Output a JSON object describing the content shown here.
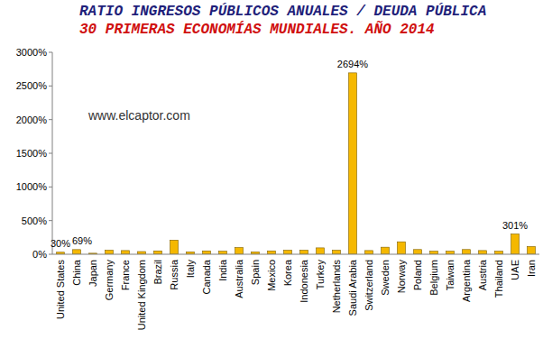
{
  "chart_data": {
    "type": "bar",
    "title": "RATIO INGRESOS PÚBLICOS ANUALES / DEUDA PÚBLICA",
    "subtitle": "30 PRIMERAS ECONOMÍAS MUNDIALES. AÑO 2014",
    "annotations": [
      "www.elcaptor.com"
    ],
    "categories": [
      "United States",
      "China",
      "Japan",
      "Germany",
      "France",
      "United Kingdom",
      "Brazil",
      "Russia",
      "Italy",
      "Canada",
      "India",
      "Australia",
      "Spain",
      "Mexico",
      "Korea",
      "Indonesia",
      "Turkey",
      "Netherlands",
      "Saudi Arabia",
      "Switzerland",
      "Sweden",
      "Norway",
      "Poland",
      "Belgium",
      "Taiwan",
      "Argentina",
      "Austria",
      "Thailand",
      "UAE",
      "Iran"
    ],
    "values": [
      30,
      69,
      15,
      60,
      55,
      40,
      50,
      210,
      35,
      50,
      45,
      100,
      35,
      50,
      60,
      60,
      95,
      60,
      2694,
      55,
      105,
      185,
      70,
      45,
      45,
      70,
      55,
      45,
      301,
      115
    ],
    "value_labels": [
      "30%",
      "69%",
      null,
      null,
      null,
      null,
      null,
      null,
      null,
      null,
      null,
      null,
      null,
      null,
      null,
      null,
      null,
      null,
      "2694%",
      null,
      null,
      null,
      null,
      null,
      null,
      null,
      null,
      null,
      "301%",
      null
    ],
    "data_labels": true,
    "color": "#f5b800",
    "ylim": [
      0,
      3000
    ],
    "yticks": [
      {
        "value": 0,
        "label": "0%"
      },
      {
        "value": 500,
        "label": "500%"
      },
      {
        "value": 1000,
        "label": "1000%"
      },
      {
        "value": 1500,
        "label": "1500%"
      },
      {
        "value": 2000,
        "label": "2000%"
      },
      {
        "value": 2500,
        "label": "2500%"
      },
      {
        "value": 3000,
        "label": "3000%"
      }
    ],
    "grid": false
  }
}
